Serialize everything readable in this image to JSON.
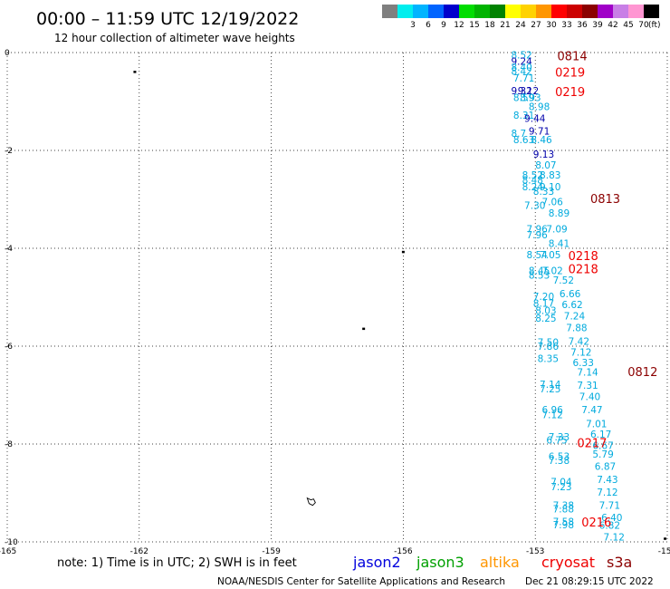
{
  "header": {
    "title": "00:00 – 11:59 UTC 12/19/2022",
    "subtitle": "12 hour collection of altimeter wave heights"
  },
  "colorbar": {
    "unit": "(ft)",
    "bins": [
      {
        "label": "",
        "color": "#7f7f7f"
      },
      {
        "label": "3",
        "color": "#00eeee"
      },
      {
        "label": "6",
        "color": "#00b4ff"
      },
      {
        "label": "9",
        "color": "#0064ff"
      },
      {
        "label": "12",
        "color": "#0000cc"
      },
      {
        "label": "15",
        "color": "#00dd00"
      },
      {
        "label": "18",
        "color": "#00b400"
      },
      {
        "label": "21",
        "color": "#008200"
      },
      {
        "label": "24",
        "color": "#ffff00"
      },
      {
        "label": "27",
        "color": "#ffd200"
      },
      {
        "label": "30",
        "color": "#ff9600"
      },
      {
        "label": "33",
        "color": "#ff0000"
      },
      {
        "label": "36",
        "color": "#cc0000"
      },
      {
        "label": "39",
        "color": "#8b0000"
      },
      {
        "label": "42",
        "color": "#a000c8"
      },
      {
        "label": "45",
        "color": "#c87fe6"
      },
      {
        "label": "70",
        "color": "#ff96d2"
      },
      {
        "label": "",
        "color": "#000000"
      }
    ]
  },
  "footer": {
    "note": "note: 1) Time is in UTC; 2) SWH is in feet",
    "legend": [
      {
        "name": "jason2",
        "color": "#0000dd"
      },
      {
        "name": "jason3",
        "color": "#00a000"
      },
      {
        "name": "altika",
        "color": "#ff9600"
      },
      {
        "name": "cryosat",
        "color": "#ee0000"
      },
      {
        "name": "s3a",
        "color": "#8b0000"
      }
    ],
    "credit": "NOAA/NESDIS Center for Satellite Applications and Research",
    "timestamp": "Dec 21 08:29:15 UTC 2022"
  },
  "chart_data": {
    "type": "scatter",
    "xlim": [
      -165,
      -150
    ],
    "ylim": [
      -10,
      0
    ],
    "x_ticks": [
      -165,
      -162,
      -159,
      -156,
      -153,
      -150
    ],
    "x_tick_labels": [
      "-165",
      "-162",
      "-159",
      "-156",
      "-153",
      "-150"
    ],
    "y_ticks": [
      0,
      -2,
      -4,
      -6,
      -8,
      -10
    ],
    "y_tick_labels": [
      "0",
      "-2",
      "-4",
      "-6",
      "-8",
      "-10"
    ],
    "grid": true,
    "colors": {
      "value": "#00aadd",
      "dark": "#0000aa",
      "cryosat": "#ee0000",
      "s3a": "#8b0000"
    },
    "wave_heights": [
      {
        "text": "8.52",
        "x": -153.55,
        "y": -0.05,
        "c": "value"
      },
      {
        "text": "9.24",
        "x": -153.55,
        "y": -0.18,
        "c": "dark"
      },
      {
        "text": "8.40",
        "x": -153.55,
        "y": -0.3,
        "c": "value"
      },
      {
        "text": "8.42",
        "x": -153.55,
        "y": -0.38,
        "c": "value"
      },
      {
        "text": "7.71",
        "x": -153.5,
        "y": -0.52,
        "c": "value"
      },
      {
        "text": "9.32",
        "x": -153.55,
        "y": -0.78,
        "c": "dark"
      },
      {
        "text": "9.12",
        "x": -153.4,
        "y": -0.78,
        "c": "dark"
      },
      {
        "text": "8.59",
        "x": -153.5,
        "y": -0.92,
        "c": "value"
      },
      {
        "text": "8.93",
        "x": -153.35,
        "y": -0.92,
        "c": "value"
      },
      {
        "text": "8.98",
        "x": -153.15,
        "y": -1.1,
        "c": "value"
      },
      {
        "text": "8.31",
        "x": -153.5,
        "y": -1.28,
        "c": "value"
      },
      {
        "text": "9.44",
        "x": -153.25,
        "y": -1.34,
        "c": "dark"
      },
      {
        "text": "9.71",
        "x": -153.15,
        "y": -1.6,
        "c": "dark"
      },
      {
        "text": "8.7",
        "x": -153.55,
        "y": -1.65,
        "c": "value"
      },
      {
        "text": "8.46",
        "x": -153.1,
        "y": -1.78,
        "c": "value"
      },
      {
        "text": "8.63",
        "x": -153.5,
        "y": -1.78,
        "c": "value"
      },
      {
        "text": "9.13",
        "x": -153.05,
        "y": -2.07,
        "c": "dark"
      },
      {
        "text": "8.07",
        "x": -153.0,
        "y": -2.3,
        "c": "value"
      },
      {
        "text": "8.83",
        "x": -152.9,
        "y": -2.5,
        "c": "value"
      },
      {
        "text": "8.52",
        "x": -153.3,
        "y": -2.5,
        "c": "value"
      },
      {
        "text": "8.48",
        "x": -153.3,
        "y": -2.6,
        "c": "value"
      },
      {
        "text": "8.24",
        "x": -153.3,
        "y": -2.74,
        "c": "value"
      },
      {
        "text": "9.10",
        "x": -152.9,
        "y": -2.74,
        "c": "value"
      },
      {
        "text": "8.33",
        "x": -153.05,
        "y": -2.83,
        "c": "value"
      },
      {
        "text": "7.06",
        "x": -152.85,
        "y": -3.05,
        "c": "value"
      },
      {
        "text": "7.30",
        "x": -153.25,
        "y": -3.12,
        "c": "value"
      },
      {
        "text": "8.89",
        "x": -152.7,
        "y": -3.28,
        "c": "value"
      },
      {
        "text": "7.09",
        "x": -152.75,
        "y": -3.6,
        "c": "value"
      },
      {
        "text": "7.96",
        "x": -153.2,
        "y": -3.6,
        "c": "value"
      },
      {
        "text": "7.96",
        "x": -153.2,
        "y": -3.72,
        "c": "value"
      },
      {
        "text": "8.41",
        "x": -152.7,
        "y": -3.9,
        "c": "value"
      },
      {
        "text": "8.54",
        "x": -153.2,
        "y": -4.13,
        "c": "value"
      },
      {
        "text": "7.05",
        "x": -152.9,
        "y": -4.13,
        "c": "value"
      },
      {
        "text": "8.45",
        "x": -153.15,
        "y": -4.45,
        "c": "value"
      },
      {
        "text": "7.02",
        "x": -152.85,
        "y": -4.45,
        "c": "value"
      },
      {
        "text": "8.53",
        "x": -153.15,
        "y": -4.55,
        "c": "value"
      },
      {
        "text": "7.52",
        "x": -152.6,
        "y": -4.65,
        "c": "value"
      },
      {
        "text": "6.66",
        "x": -152.45,
        "y": -4.93,
        "c": "value"
      },
      {
        "text": "7.20",
        "x": -153.05,
        "y": -4.98,
        "c": "value"
      },
      {
        "text": "8.17",
        "x": -153.05,
        "y": -5.12,
        "c": "value"
      },
      {
        "text": "6.62",
        "x": -152.4,
        "y": -5.15,
        "c": "value"
      },
      {
        "text": "8.03",
        "x": -153.0,
        "y": -5.27,
        "c": "value"
      },
      {
        "text": "7.24",
        "x": -152.35,
        "y": -5.38,
        "c": "value"
      },
      {
        "text": "8.25",
        "x": -153.0,
        "y": -5.43,
        "c": "value"
      },
      {
        "text": "7.88",
        "x": -152.3,
        "y": -5.62,
        "c": "value"
      },
      {
        "text": "7.42",
        "x": -152.25,
        "y": -5.9,
        "c": "value"
      },
      {
        "text": "7.50",
        "x": -152.95,
        "y": -5.92,
        "c": "value"
      },
      {
        "text": "7.86",
        "x": -152.95,
        "y": -6.0,
        "c": "value"
      },
      {
        "text": "7.12",
        "x": -152.2,
        "y": -6.12,
        "c": "value"
      },
      {
        "text": "8.35",
        "x": -152.95,
        "y": -6.25,
        "c": "value"
      },
      {
        "text": "6.33",
        "x": -152.15,
        "y": -6.33,
        "c": "value"
      },
      {
        "text": "7.14",
        "x": -152.05,
        "y": -6.53,
        "c": "value"
      },
      {
        "text": "7.14",
        "x": -152.9,
        "y": -6.78,
        "c": "value"
      },
      {
        "text": "7.31",
        "x": -152.05,
        "y": -6.8,
        "c": "value"
      },
      {
        "text": "7.25",
        "x": -152.9,
        "y": -6.87,
        "c": "value"
      },
      {
        "text": "7.40",
        "x": -152.0,
        "y": -7.03,
        "c": "value"
      },
      {
        "text": "6.96",
        "x": -152.85,
        "y": -7.3,
        "c": "value"
      },
      {
        "text": "7.47",
        "x": -151.95,
        "y": -7.3,
        "c": "value"
      },
      {
        "text": "7.12",
        "x": -152.85,
        "y": -7.4,
        "c": "value"
      },
      {
        "text": "7.01",
        "x": -151.85,
        "y": -7.58,
        "c": "value"
      },
      {
        "text": "6.17",
        "x": -151.75,
        "y": -7.8,
        "c": "value"
      },
      {
        "text": "7.33",
        "x": -152.7,
        "y": -7.85,
        "c": "value"
      },
      {
        "text": "6.75",
        "x": -152.75,
        "y": -7.92,
        "c": "value"
      },
      {
        "text": "6.67",
        "x": -151.7,
        "y": -8.03,
        "c": "value"
      },
      {
        "text": "5.79",
        "x": -151.7,
        "y": -8.2,
        "c": "value"
      },
      {
        "text": "6.53",
        "x": -152.7,
        "y": -8.25,
        "c": "value"
      },
      {
        "text": "7.38",
        "x": -152.7,
        "y": -8.33,
        "c": "value"
      },
      {
        "text": "6.87",
        "x": -151.65,
        "y": -8.45,
        "c": "value"
      },
      {
        "text": "7.43",
        "x": -151.6,
        "y": -8.72,
        "c": "value"
      },
      {
        "text": "7.04",
        "x": -152.65,
        "y": -8.77,
        "c": "value"
      },
      {
        "text": "7.23",
        "x": -152.65,
        "y": -8.87,
        "c": "value"
      },
      {
        "text": "7.12",
        "x": -151.6,
        "y": -8.98,
        "c": "value"
      },
      {
        "text": "7.71",
        "x": -151.55,
        "y": -9.25,
        "c": "value"
      },
      {
        "text": "7.38",
        "x": -152.6,
        "y": -9.25,
        "c": "value"
      },
      {
        "text": "7.88",
        "x": -152.6,
        "y": -9.32,
        "c": "value"
      },
      {
        "text": "6.40",
        "x": -151.5,
        "y": -9.5,
        "c": "value"
      },
      {
        "text": "7.58",
        "x": -152.6,
        "y": -9.58,
        "c": "value"
      },
      {
        "text": "7.98",
        "x": -152.6,
        "y": -9.65,
        "c": "value"
      },
      {
        "text": "6.82",
        "x": -151.55,
        "y": -9.66,
        "c": "value"
      },
      {
        "text": "7.12",
        "x": -151.45,
        "y": -9.9,
        "c": "value"
      }
    ],
    "time_labels": [
      {
        "text": "0814",
        "x": -152.5,
        "y": -0.05,
        "c": "s3a"
      },
      {
        "text": "0219",
        "x": -152.55,
        "y": -0.38,
        "c": "cryosat"
      },
      {
        "text": "0219",
        "x": -152.55,
        "y": -0.78,
        "c": "cryosat"
      },
      {
        "text": "0813",
        "x": -151.75,
        "y": -2.96,
        "c": "s3a"
      },
      {
        "text": "0218",
        "x": -152.25,
        "y": -4.13,
        "c": "cryosat"
      },
      {
        "text": "0218",
        "x": -152.25,
        "y": -4.4,
        "c": "cryosat"
      },
      {
        "text": "0812",
        "x": -150.9,
        "y": -6.5,
        "c": "s3a"
      },
      {
        "text": "0217",
        "x": -152.05,
        "y": -7.95,
        "c": "cryosat"
      },
      {
        "text": "0216",
        "x": -151.95,
        "y": -9.57,
        "c": "cryosat"
      }
    ],
    "land_marks": [
      {
        "x": -162.1,
        "y": -0.4,
        "shape": "dot"
      },
      {
        "x": -156.0,
        "y": -4.08,
        "shape": "dot"
      },
      {
        "x": -156.9,
        "y": -5.65,
        "shape": "dot"
      },
      {
        "x": -158.1,
        "y": -9.16,
        "shape": "island"
      },
      {
        "x": -150.05,
        "y": -9.94,
        "shape": "dot"
      }
    ]
  }
}
